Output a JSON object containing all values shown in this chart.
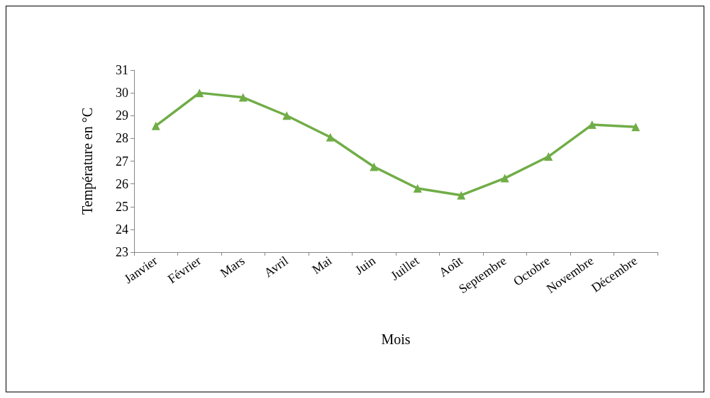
{
  "chart_data": {
    "type": "line",
    "xlabel": "Mois",
    "ylabel": "Température en °C",
    "categories": [
      "Janvier",
      "Février",
      "Mars",
      "Avril",
      "Mai",
      "Juin",
      "Juillet",
      "Août",
      "Septembre",
      "Octobre",
      "Novembre",
      "Décembre"
    ],
    "series": [
      {
        "color": "#70ad47",
        "values": [
          28.55,
          30.0,
          29.8,
          29.0,
          28.05,
          26.75,
          25.8,
          25.5,
          26.25,
          27.2,
          28.6,
          28.5
        ]
      }
    ],
    "ylim": [
      23,
      31
    ],
    "yticks": [
      23,
      24,
      25,
      26,
      27,
      28,
      29,
      30,
      31
    ],
    "grid": false,
    "marker": "triangle",
    "line_style": "solid"
  }
}
